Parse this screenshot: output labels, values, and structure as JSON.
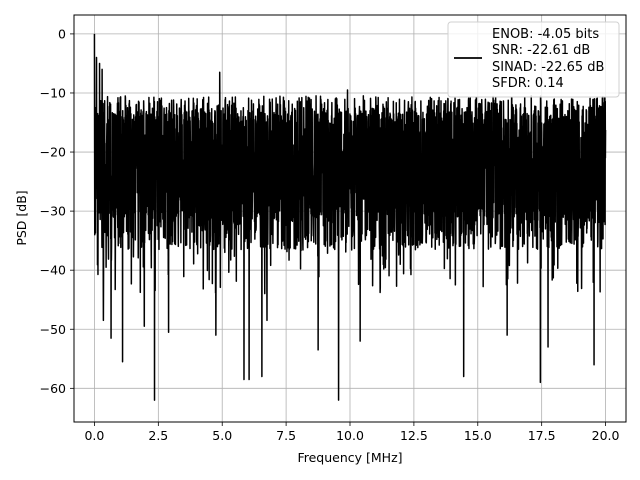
{
  "chart_data": {
    "type": "line",
    "title": "",
    "xlabel": "Frequency [MHz]",
    "ylabel": "PSD [dB]",
    "xlim": [
      -0.8,
      20.8
    ],
    "ylim": [
      -65.7,
      3.2
    ],
    "xticks": [
      0.0,
      2.5,
      5.0,
      7.5,
      10.0,
      12.5,
      15.0,
      17.5,
      20.0
    ],
    "xtick_labels": [
      "0.0",
      "2.5",
      "5.0",
      "7.5",
      "10.0",
      "12.5",
      "15.0",
      "17.5",
      "20.0"
    ],
    "yticks": [
      0,
      -10,
      -20,
      -30,
      -40,
      -50,
      -60
    ],
    "ytick_labels": [
      "0",
      "−10",
      "−20",
      "−30",
      "−40",
      "−50",
      "−60"
    ],
    "grid": true,
    "legend_position": "top-right",
    "series": [
      {
        "color": "#000000",
        "legend_lines": [
          "ENOB: -4.05 bits",
          "SNR: -22.61 dB",
          "SINAD: -22.65 dB",
          "SFDR: 0.14"
        ],
        "band": {
          "upper_typical": -13,
          "lower_typical": -33,
          "median": -22
        },
        "peaks": [
          {
            "x": 0.0,
            "y": 0.0
          },
          {
            "x": 0.08,
            "y": -4.0
          },
          {
            "x": 0.2,
            "y": -5.0
          },
          {
            "x": 0.3,
            "y": -6.0
          },
          {
            "x": 4.9,
            "y": -6.5
          },
          {
            "x": 9.9,
            "y": -9.5
          }
        ],
        "dips": [
          {
            "x": 0.35,
            "y": -48.5
          },
          {
            "x": 0.65,
            "y": -51.5
          },
          {
            "x": 1.1,
            "y": -55.5
          },
          {
            "x": 1.95,
            "y": -49.5
          },
          {
            "x": 2.35,
            "y": -62.0
          },
          {
            "x": 2.9,
            "y": -50.5
          },
          {
            "x": 4.75,
            "y": -51.0
          },
          {
            "x": 5.85,
            "y": -58.5
          },
          {
            "x": 6.05,
            "y": -58.5
          },
          {
            "x": 6.55,
            "y": -58.0
          },
          {
            "x": 6.75,
            "y": -48.5
          },
          {
            "x": 8.75,
            "y": -53.5
          },
          {
            "x": 9.55,
            "y": -62.0
          },
          {
            "x": 10.4,
            "y": -52.0
          },
          {
            "x": 14.45,
            "y": -58.0
          },
          {
            "x": 16.15,
            "y": -51.0
          },
          {
            "x": 17.45,
            "y": -59.0
          },
          {
            "x": 17.75,
            "y": -53.0
          },
          {
            "x": 19.55,
            "y": -56.0
          }
        ]
      }
    ]
  }
}
